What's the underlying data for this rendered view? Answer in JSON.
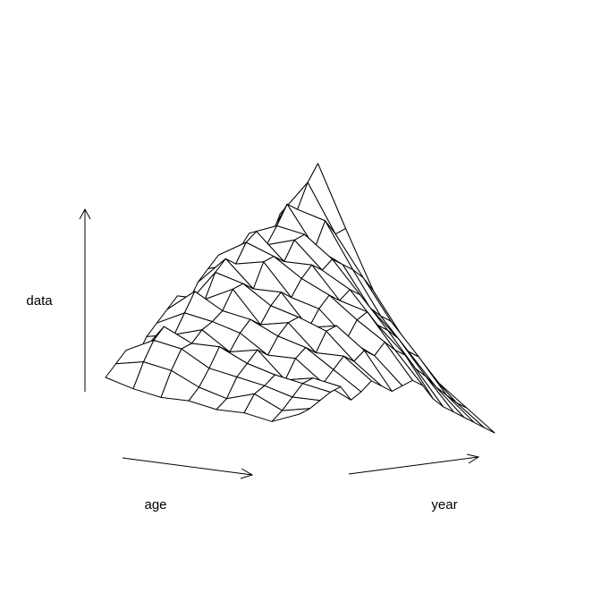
{
  "chart_data": {
    "type": "surface",
    "x_label": "age",
    "y_label": "year",
    "z_label": "data",
    "zlim": [
      0,
      1
    ],
    "z": [
      [
        0.15,
        0.2,
        0.25,
        0.22,
        0.3,
        0.35,
        0.4,
        0.45,
        0.42,
        0.5,
        0.55,
        0.6,
        0.55,
        0.62,
        0.68,
        0.6,
        0.65,
        0.75,
        0.7,
        0.55
      ],
      [
        0.12,
        0.22,
        0.3,
        0.35,
        0.32,
        0.4,
        0.48,
        0.45,
        0.55,
        0.6,
        0.58,
        0.66,
        0.7,
        0.65,
        0.72,
        0.8,
        0.78,
        0.88,
        0.95,
        0.6
      ],
      [
        0.1,
        0.2,
        0.28,
        0.3,
        0.35,
        0.38,
        0.42,
        0.5,
        0.52,
        0.5,
        0.6,
        0.62,
        0.6,
        0.68,
        0.7,
        0.65,
        0.75,
        0.7,
        0.72,
        0.5
      ],
      [
        0.1,
        0.15,
        0.22,
        0.3,
        0.28,
        0.35,
        0.4,
        0.38,
        0.45,
        0.5,
        0.48,
        0.55,
        0.6,
        0.58,
        0.62,
        0.6,
        0.58,
        0.55,
        0.5,
        0.4
      ],
      [
        0.08,
        0.12,
        0.2,
        0.25,
        0.3,
        0.28,
        0.35,
        0.4,
        0.42,
        0.38,
        0.45,
        0.5,
        0.48,
        0.52,
        0.5,
        0.45,
        0.42,
        0.4,
        0.35,
        0.3
      ],
      [
        0.08,
        0.15,
        0.18,
        0.22,
        0.2,
        0.28,
        0.32,
        0.3,
        0.38,
        0.4,
        0.35,
        0.42,
        0.45,
        0.4,
        0.38,
        0.35,
        0.3,
        0.28,
        0.22,
        0.18
      ],
      [
        0.06,
        0.1,
        0.15,
        0.2,
        0.22,
        0.2,
        0.25,
        0.3,
        0.28,
        0.32,
        0.3,
        0.35,
        0.32,
        0.3,
        0.25,
        0.22,
        0.18,
        0.15,
        0.12,
        0.1
      ],
      [
        0.1,
        0.12,
        0.15,
        0.18,
        0.2,
        0.15,
        0.18,
        0.22,
        0.2,
        0.18,
        0.2,
        0.22,
        0.2,
        0.15,
        0.12,
        0.1,
        0.08,
        0.06,
        0.04,
        0.02
      ]
    ]
  }
}
